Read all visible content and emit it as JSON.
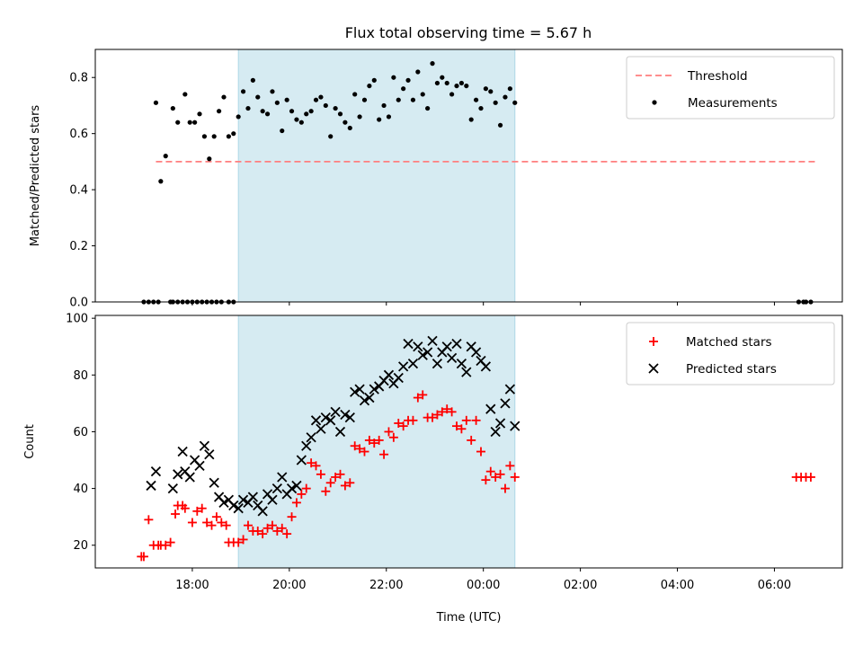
{
  "title": "Flux total observing time = 5.67 h",
  "chart_data": [
    {
      "id": "ratio",
      "type": "scatter",
      "ylabel": "Matched/Predicted stars",
      "ylim": [
        0,
        0.9
      ],
      "yticks": [
        0.0,
        0.2,
        0.4,
        0.6,
        0.8
      ],
      "yticklabels": [
        "0.0",
        "0.2",
        "0.4",
        "0.6",
        "0.8"
      ],
      "legend": "top-right",
      "threshold": {
        "name": "Threshold",
        "value": 0.5,
        "x_range": [
          17.25,
          30.9
        ],
        "color": "#ff7f7f"
      },
      "series": [
        {
          "name": "Measurements",
          "color": "#000000",
          "x": [
            17.0,
            17.1,
            17.2,
            17.3,
            17.55,
            17.6,
            17.7,
            17.8,
            17.9,
            18.0,
            18.1,
            18.2,
            18.3,
            18.4,
            18.5,
            18.6,
            18.75,
            18.85,
            17.25,
            17.35,
            17.45,
            17.6,
            17.7,
            17.85,
            17.95,
            18.05,
            18.15,
            18.25,
            18.35,
            18.45,
            18.55,
            18.65,
            18.75,
            18.85,
            18.95,
            19.05,
            19.15,
            19.25,
            19.35,
            19.45,
            19.55,
            19.65,
            19.75,
            19.85,
            19.95,
            20.05,
            20.15,
            20.25,
            20.35,
            20.45,
            20.55,
            20.65,
            20.75,
            20.85,
            20.95,
            21.05,
            21.15,
            21.25,
            21.35,
            21.45,
            21.55,
            21.65,
            21.75,
            21.85,
            21.95,
            22.05,
            22.15,
            22.25,
            22.35,
            22.45,
            22.55,
            22.65,
            22.75,
            22.85,
            22.95,
            23.05,
            23.15,
            23.25,
            23.35,
            23.45,
            23.55,
            23.65,
            23.75,
            23.85,
            23.95,
            24.05,
            24.15,
            24.25,
            24.35,
            24.45,
            24.55,
            24.65,
            30.5,
            30.6,
            30.65,
            30.75
          ],
          "y": [
            0.0,
            0.0,
            0.0,
            0.0,
            0.0,
            0.0,
            0.0,
            0.0,
            0.0,
            0.0,
            0.0,
            0.0,
            0.0,
            0.0,
            0.0,
            0.0,
            0.0,
            0.0,
            0.71,
            0.43,
            0.52,
            0.69,
            0.64,
            0.74,
            0.64,
            0.64,
            0.67,
            0.59,
            0.51,
            0.59,
            0.68,
            0.73,
            0.59,
            0.6,
            0.66,
            0.75,
            0.69,
            0.79,
            0.73,
            0.68,
            0.67,
            0.75,
            0.71,
            0.61,
            0.72,
            0.68,
            0.65,
            0.64,
            0.67,
            0.68,
            0.72,
            0.73,
            0.7,
            0.59,
            0.69,
            0.67,
            0.64,
            0.62,
            0.74,
            0.66,
            0.72,
            0.77,
            0.79,
            0.65,
            0.7,
            0.66,
            0.8,
            0.72,
            0.76,
            0.79,
            0.72,
            0.82,
            0.74,
            0.69,
            0.85,
            0.78,
            0.8,
            0.78,
            0.74,
            0.77,
            0.78,
            0.77,
            0.65,
            0.72,
            0.69,
            0.76,
            0.75,
            0.71,
            0.63,
            0.73,
            0.76,
            0.71,
            0.0,
            0.0,
            0.0,
            0.0
          ]
        }
      ]
    },
    {
      "id": "count",
      "type": "scatter",
      "xlabel": "Time (UTC)",
      "ylabel": "Count",
      "xlim": [
        16.0,
        31.4
      ],
      "ylim": [
        12,
        101
      ],
      "xticks": [
        18,
        20,
        22,
        24,
        26,
        28,
        30
      ],
      "xticklabels": [
        "18:00",
        "20:00",
        "22:00",
        "00:00",
        "02:00",
        "04:00",
        "06:00"
      ],
      "yticks": [
        20,
        40,
        60,
        80,
        100
      ],
      "yticklabels": [
        "20",
        "40",
        "60",
        "80",
        "100"
      ],
      "legend": "top-right",
      "series": [
        {
          "name": "Matched stars",
          "marker": "plus",
          "color": "#ff0000",
          "x": [
            16.95,
            17.0,
            17.1,
            17.2,
            17.3,
            17.35,
            17.45,
            17.55,
            17.65,
            17.7,
            17.8,
            17.85,
            18.0,
            18.1,
            18.2,
            18.3,
            18.4,
            18.5,
            18.6,
            18.7,
            18.75,
            18.85,
            18.95,
            19.05,
            19.15,
            19.25,
            19.35,
            19.45,
            19.55,
            19.65,
            19.75,
            19.85,
            19.95,
            20.05,
            20.15,
            20.25,
            20.35,
            20.45,
            20.55,
            20.65,
            20.75,
            20.85,
            20.95,
            21.05,
            21.15,
            21.25,
            21.35,
            21.45,
            21.55,
            21.65,
            21.75,
            21.85,
            21.95,
            22.05,
            22.15,
            22.25,
            22.35,
            22.45,
            22.55,
            22.65,
            22.75,
            22.85,
            22.95,
            23.05,
            23.15,
            23.25,
            23.35,
            23.45,
            23.55,
            23.65,
            23.75,
            23.85,
            23.95,
            24.05,
            24.15,
            24.25,
            24.35,
            24.45,
            24.55,
            24.65,
            30.45,
            30.55,
            30.65,
            30.75
          ],
          "y": [
            16,
            16,
            29,
            20,
            20,
            20,
            20,
            21,
            31,
            34,
            34,
            33,
            28,
            32,
            33,
            28,
            27,
            30,
            28,
            27,
            21,
            21,
            21,
            22,
            27,
            25,
            25,
            24,
            26,
            27,
            25,
            26,
            24,
            30,
            35,
            38,
            40,
            49,
            48,
            45,
            39,
            42,
            44,
            45,
            41,
            42,
            55,
            54,
            53,
            57,
            56,
            57,
            52,
            60,
            58,
            63,
            62,
            64,
            64,
            72,
            73,
            65,
            65,
            66,
            67,
            68,
            67,
            62,
            61,
            64,
            57,
            64,
            53,
            43,
            46,
            44,
            45,
            40,
            48,
            44,
            44,
            44,
            44,
            44
          ]
        },
        {
          "name": "Predicted stars",
          "marker": "x",
          "color": "#000000",
          "x": [
            17.15,
            17.25,
            17.6,
            17.7,
            17.8,
            17.85,
            17.95,
            18.05,
            18.15,
            18.25,
            18.35,
            18.45,
            18.55,
            18.65,
            18.75,
            18.85,
            18.95,
            19.05,
            19.15,
            19.25,
            19.35,
            19.45,
            19.55,
            19.65,
            19.75,
            19.85,
            19.95,
            20.05,
            20.15,
            20.25,
            20.35,
            20.45,
            20.55,
            20.65,
            20.75,
            20.85,
            20.95,
            21.05,
            21.15,
            21.25,
            21.35,
            21.45,
            21.55,
            21.65,
            21.75,
            21.85,
            21.95,
            22.05,
            22.15,
            22.25,
            22.35,
            22.45,
            22.55,
            22.65,
            22.75,
            22.85,
            22.95,
            23.05,
            23.15,
            23.25,
            23.35,
            23.45,
            23.55,
            23.65,
            23.75,
            23.85,
            23.95,
            24.05,
            24.15,
            24.25,
            24.35,
            24.45,
            24.55,
            24.65
          ],
          "y": [
            41,
            46,
            40,
            45,
            53,
            46,
            44,
            50,
            48,
            55,
            52,
            42,
            37,
            35,
            36,
            34,
            33,
            36,
            35,
            37,
            34,
            32,
            38,
            36,
            40,
            44,
            38,
            40,
            41,
            50,
            55,
            58,
            64,
            61,
            65,
            64,
            67,
            60,
            66,
            65,
            74,
            75,
            71,
            72,
            75,
            76,
            78,
            80,
            77,
            79,
            83,
            91,
            84,
            90,
            87,
            88,
            92,
            84,
            88,
            90,
            86,
            91,
            84,
            81,
            90,
            88,
            85,
            83,
            68,
            60,
            63,
            70,
            75,
            62
          ]
        }
      ]
    }
  ],
  "highlight": {
    "x_range": [
      18.95,
      24.65
    ],
    "color": "#add8e6",
    "alpha": 0.5
  }
}
